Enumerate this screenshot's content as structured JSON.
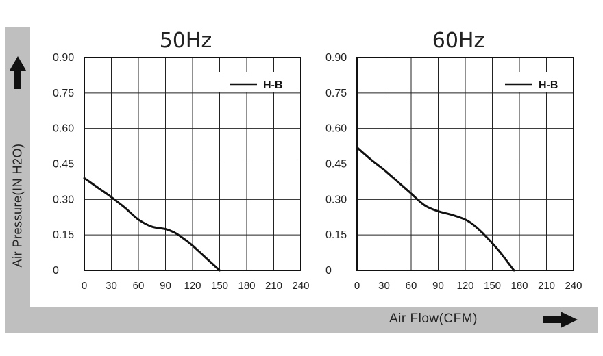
{
  "y_axis_label": "Air Pressure(IN H2O)",
  "x_axis_label": "Air Flow(CFM)",
  "chart_data": [
    {
      "type": "line",
      "title": "50Hz",
      "xlim": [
        0,
        240
      ],
      "ylim": [
        0,
        0.9
      ],
      "x_ticks": [
        "0",
        "30",
        "60",
        "90",
        "120",
        "150",
        "180",
        "210",
        "240"
      ],
      "y_ticks": [
        "0",
        "0.15",
        "0.30",
        "0.45",
        "0.60",
        "0.75",
        "0.90"
      ],
      "grid": true,
      "legend_position": "top-right",
      "series": [
        {
          "name": "H-B",
          "x": [
            0,
            15,
            30,
            45,
            60,
            75,
            90,
            100,
            110,
            120,
            130,
            140,
            150
          ],
          "y": [
            0.39,
            0.35,
            0.31,
            0.265,
            0.215,
            0.185,
            0.175,
            0.16,
            0.135,
            0.105,
            0.07,
            0.035,
            0
          ]
        }
      ]
    },
    {
      "type": "line",
      "title": "60Hz",
      "xlim": [
        0,
        240
      ],
      "ylim": [
        0,
        0.9
      ],
      "x_ticks": [
        "0",
        "30",
        "60",
        "90",
        "120",
        "150",
        "180",
        "210",
        "240"
      ],
      "y_ticks": [
        "0",
        "0.15",
        "0.30",
        "0.45",
        "0.60",
        "0.75",
        "0.90"
      ],
      "grid": true,
      "legend_position": "top-right",
      "series": [
        {
          "name": "H-B",
          "x": [
            0,
            15,
            30,
            45,
            60,
            75,
            90,
            105,
            120,
            130,
            140,
            150,
            160,
            170,
            174
          ],
          "y": [
            0.52,
            0.47,
            0.425,
            0.375,
            0.325,
            0.275,
            0.25,
            0.235,
            0.215,
            0.19,
            0.155,
            0.115,
            0.07,
            0.02,
            0
          ]
        }
      ]
    }
  ]
}
